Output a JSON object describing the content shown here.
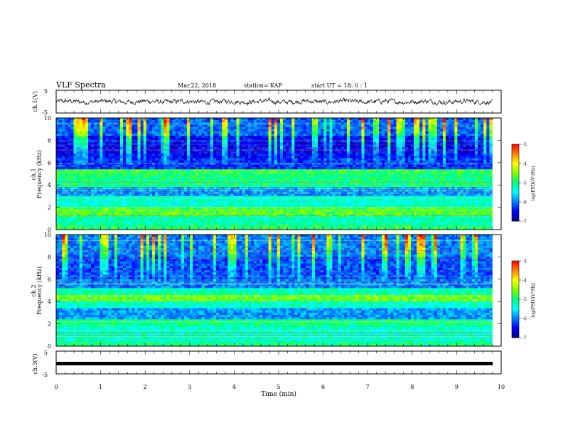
{
  "header": {
    "title": "VLF Spectra",
    "date": "Mar.22, 2018",
    "station": "station= KAP",
    "start": "start  UT =   18: 0  : 1"
  },
  "chart_data": [
    {
      "type": "line",
      "panel": "ch1-waveform",
      "ylabel": "ch.1(V)",
      "ylim": [
        -5,
        5
      ],
      "yticks": [
        "5",
        "-5"
      ],
      "xlim": [
        0,
        10
      ],
      "trace": "noisy waveform around 0 V, amplitude about ±1.5 V, ends near 9.8 min"
    },
    {
      "type": "heatmap",
      "panel": "ch1-spectrogram",
      "ylabel": "ch.1\nFrequency (kHz)",
      "ylim": [
        0,
        10
      ],
      "yticks": [
        "0",
        "2",
        "4",
        "6",
        "8",
        "10"
      ],
      "xlim": [
        0,
        9.8
      ],
      "bands": [
        {
          "from": 0.0,
          "to": 0.5,
          "level": -4.9
        },
        {
          "from": 0.5,
          "to": 1.2,
          "level": -5.2
        },
        {
          "from": 1.2,
          "to": 2.0,
          "level": -4.7
        },
        {
          "from": 2.0,
          "to": 3.0,
          "level": -5.3
        },
        {
          "from": 3.0,
          "to": 3.8,
          "level": -5.9
        },
        {
          "from": 3.8,
          "to": 5.0,
          "level": -5.0
        },
        {
          "from": 5.0,
          "to": 5.5,
          "level": -4.8
        },
        {
          "from": 5.5,
          "to": 6.5,
          "level": -6.3
        },
        {
          "from": 6.5,
          "to": 8.5,
          "level": -6.5
        },
        {
          "from": 8.5,
          "to": 10.0,
          "level": -6.1
        }
      ],
      "colorbar": {
        "label": "log(PSD)(V²/Hz)",
        "range": [
          -7,
          -3
        ],
        "ticks": [
          "-3",
          "-4",
          "-5",
          "-6",
          "-7"
        ]
      }
    },
    {
      "type": "heatmap",
      "panel": "ch2-spectrogram",
      "ylabel": "ch.2\nFrequency (kHz)",
      "ylim": [
        0,
        10
      ],
      "yticks": [
        "0",
        "2",
        "4",
        "6",
        "8",
        "10"
      ],
      "xlim": [
        0,
        9.8
      ],
      "bands": [
        {
          "from": 0.0,
          "to": 0.5,
          "level": -5.0
        },
        {
          "from": 0.5,
          "to": 1.8,
          "level": -5.3
        },
        {
          "from": 1.8,
          "to": 2.5,
          "level": -5.0
        },
        {
          "from": 2.5,
          "to": 3.5,
          "level": -5.9
        },
        {
          "from": 3.5,
          "to": 4.0,
          "level": -5.3
        },
        {
          "from": 4.0,
          "to": 4.6,
          "level": -4.6
        },
        {
          "from": 4.6,
          "to": 5.2,
          "level": -5.2
        },
        {
          "from": 5.2,
          "to": 6.0,
          "level": -6.0
        },
        {
          "from": 6.0,
          "to": 8.0,
          "level": -6.2
        },
        {
          "from": 8.0,
          "to": 10.0,
          "level": -6.0
        }
      ],
      "colorbar": {
        "label": "log(PSD)(V²/Hz)",
        "range": [
          -7,
          -3
        ],
        "ticks": [
          "-3",
          "-4",
          "-5",
          "-6",
          "-7"
        ]
      }
    },
    {
      "type": "line",
      "panel": "ch3-waveform",
      "ylabel": "ch.3(V)",
      "ylim": [
        -5,
        5
      ],
      "yticks": [
        "5",
        "-5"
      ],
      "xlim": [
        0,
        10
      ],
      "trace": "flat thick line at about -1.5 V to 9.8 min"
    }
  ],
  "xaxis": {
    "label": "Time (min)",
    "ticks": [
      "0",
      "1",
      "2",
      "3",
      "4",
      "5",
      "6",
      "7",
      "8",
      "9",
      "10"
    ]
  },
  "colors": {
    "colormap": [
      "#000080",
      "#0000ff",
      "#0080ff",
      "#00ffff",
      "#00ff80",
      "#80ff00",
      "#ffff00",
      "#ff8000",
      "#ff0000",
      "#ffffff"
    ]
  }
}
